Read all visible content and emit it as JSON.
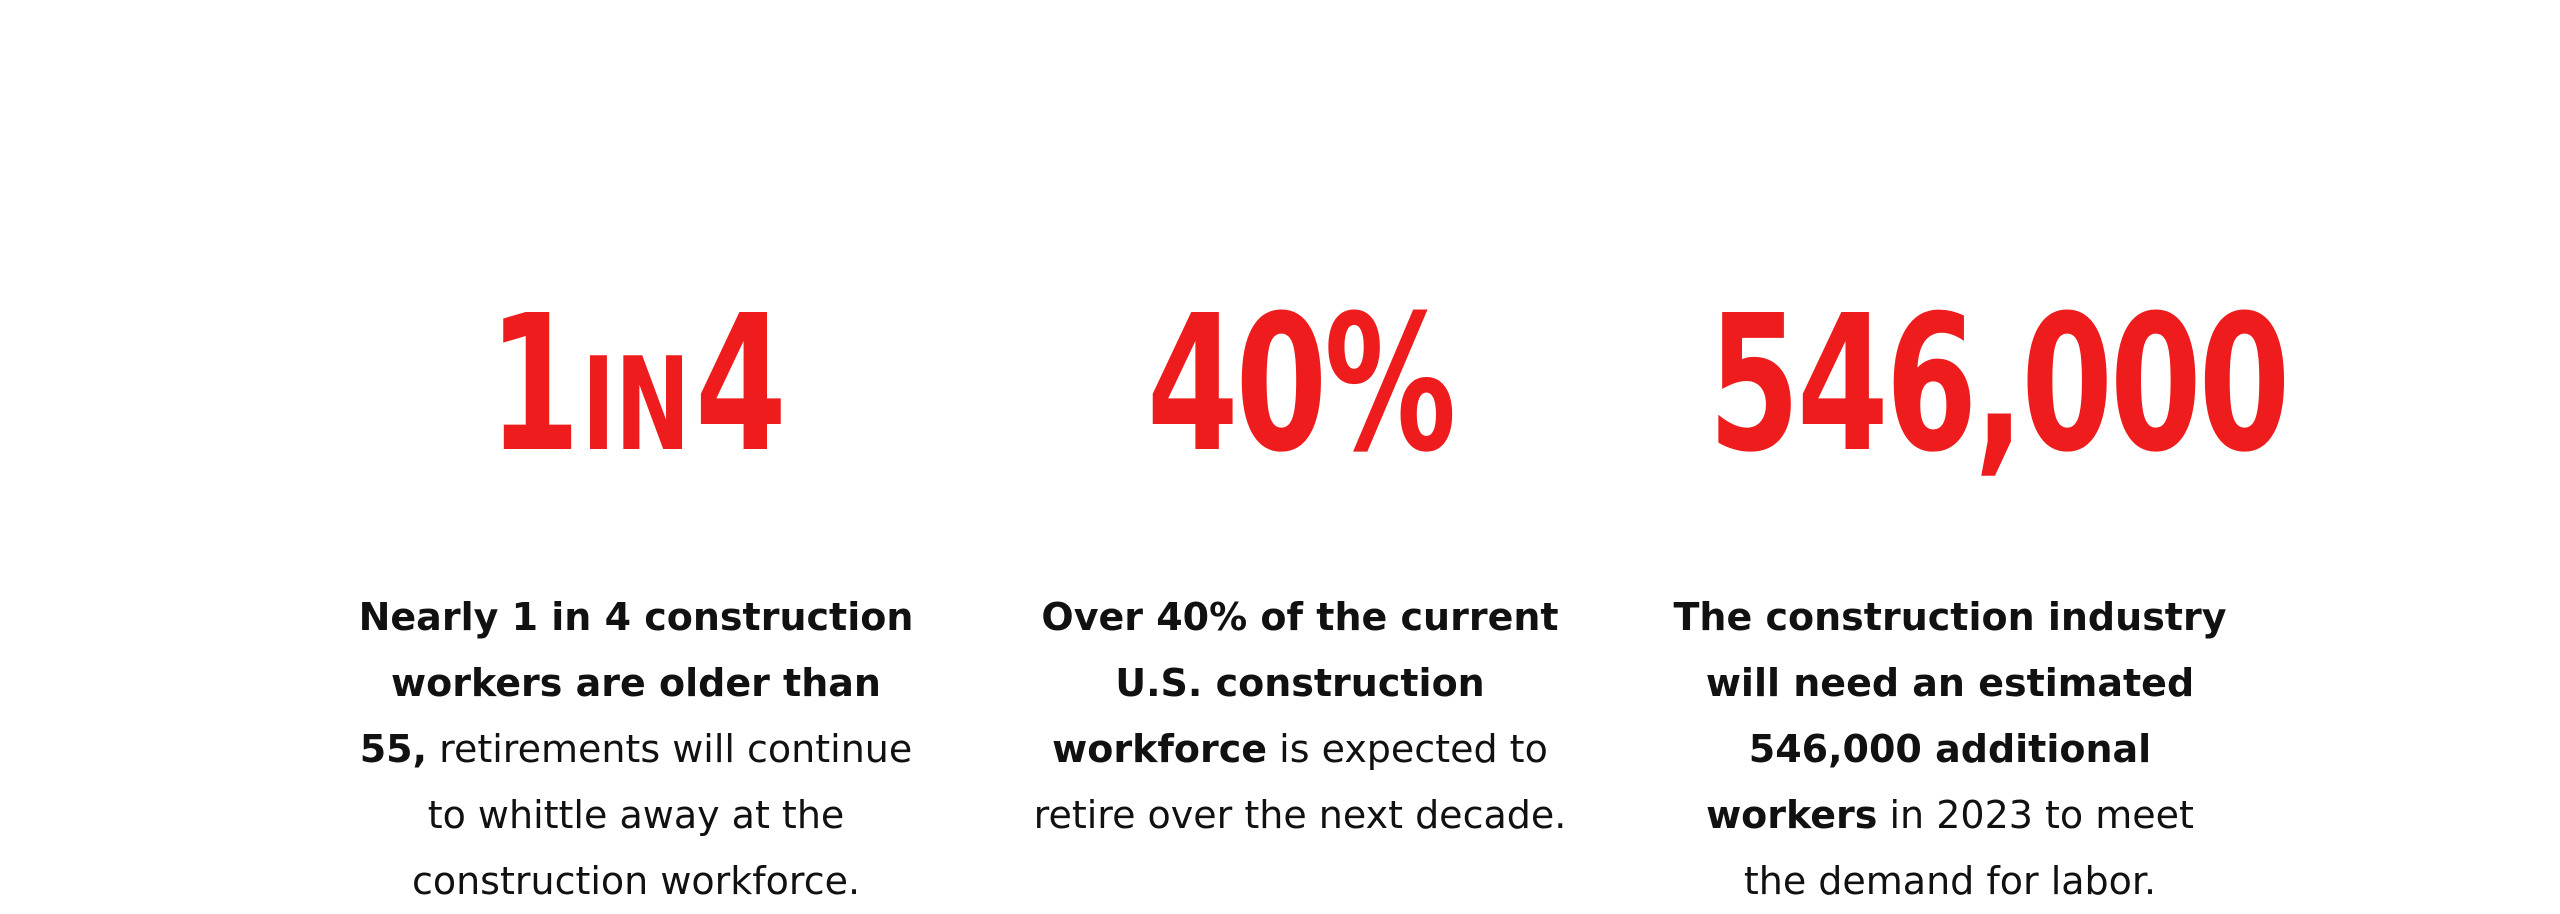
{
  "stats": [
    {
      "big_a": "1",
      "big_in": "IN",
      "big_b": "4",
      "desc_bold": "Nearly 1 in 4 construction workers are older than 55,",
      "desc_normal": "retirements will continue to whittle away at the construction workforce."
    },
    {
      "big": "40%",
      "desc_bold": "Over 40% of the current U.S. construction workforce",
      "desc_normal": "is expected to retire over the next decade."
    },
    {
      "big": "546,000",
      "desc_bold": "The construction industry will need an estimated 546,000 additional workers",
      "desc_normal": "in 2023 to meet the demand for labor."
    }
  ],
  "colors": {
    "accent": "#ee1c1c",
    "text": "#111111",
    "background": "#ffffff"
  }
}
